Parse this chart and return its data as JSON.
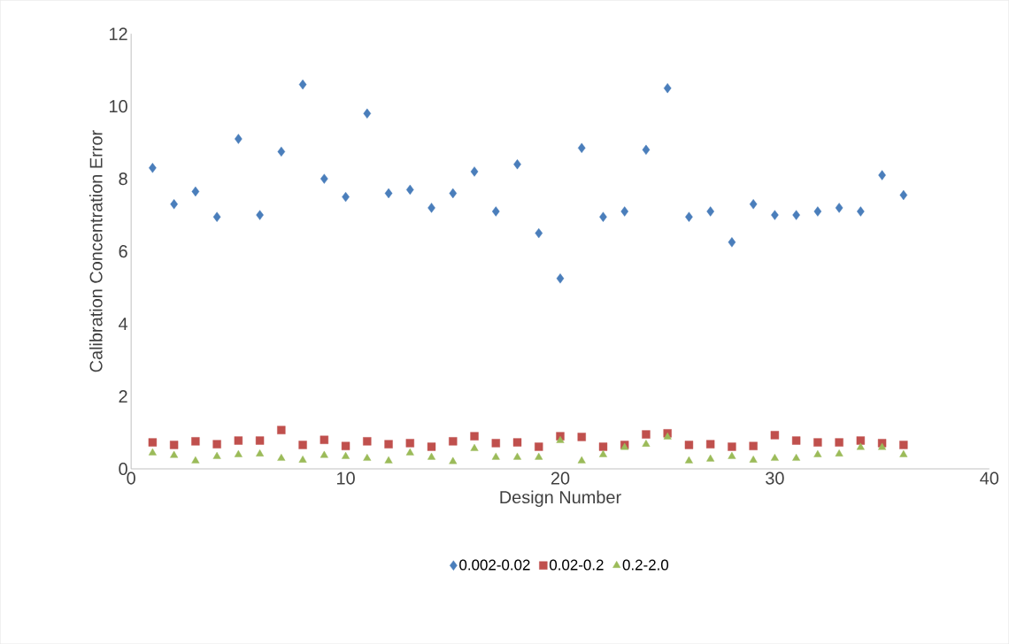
{
  "chart_data": {
    "type": "scatter",
    "xlabel": "Design Number",
    "ylabel": "Calibration Concentration Error",
    "x": [
      1,
      2,
      3,
      4,
      5,
      6,
      7,
      8,
      9,
      10,
      11,
      12,
      13,
      14,
      15,
      16,
      17,
      18,
      19,
      20,
      21,
      22,
      23,
      24,
      25,
      26,
      27,
      28,
      29,
      30,
      31,
      32,
      33,
      34,
      35,
      36
    ],
    "series": [
      {
        "name": "0.002-0.02",
        "color": "#4a7ebb",
        "marker": "diamond",
        "values": [
          8.3,
          7.3,
          7.65,
          6.95,
          9.1,
          7.0,
          8.75,
          10.6,
          8.0,
          7.5,
          9.8,
          7.6,
          7.7,
          7.2,
          7.6,
          8.2,
          7.1,
          8.4,
          6.5,
          5.25,
          8.85,
          6.95,
          7.1,
          8.8,
          10.5,
          6.95,
          7.1,
          6.25,
          7.3,
          7.0,
          7.0,
          7.1,
          7.2,
          7.1,
          8.1,
          7.55
        ]
      },
      {
        "name": "0.02-0.2",
        "color": "#c0504d",
        "marker": "square",
        "values": [
          0.73,
          0.66,
          0.76,
          0.68,
          0.78,
          0.78,
          1.07,
          0.66,
          0.8,
          0.63,
          0.76,
          0.68,
          0.71,
          0.61,
          0.76,
          0.9,
          0.71,
          0.73,
          0.61,
          0.9,
          0.88,
          0.61,
          0.66,
          0.95,
          0.98,
          0.66,
          0.68,
          0.61,
          0.63,
          0.93,
          0.78,
          0.73,
          0.73,
          0.78,
          0.71,
          0.66
        ]
      },
      {
        "name": "0.2-2.0",
        "color": "#9bbb59",
        "marker": "triangle",
        "values": [
          0.44,
          0.37,
          0.22,
          0.34,
          0.39,
          0.41,
          0.29,
          0.24,
          0.37,
          0.34,
          0.29,
          0.22,
          0.44,
          0.32,
          0.2,
          0.56,
          0.32,
          0.32,
          0.32,
          0.78,
          0.22,
          0.39,
          0.59,
          0.68,
          0.88,
          0.22,
          0.27,
          0.34,
          0.24,
          0.29,
          0.29,
          0.39,
          0.41,
          0.59,
          0.59,
          0.39
        ]
      }
    ],
    "xlim": [
      0,
      40
    ],
    "xticks": [
      0,
      10,
      20,
      30,
      40
    ],
    "ylim": [
      0,
      12
    ],
    "yticks": [
      0,
      2,
      4,
      6,
      8,
      10,
      12
    ],
    "grid": false,
    "legend": "bottom"
  }
}
